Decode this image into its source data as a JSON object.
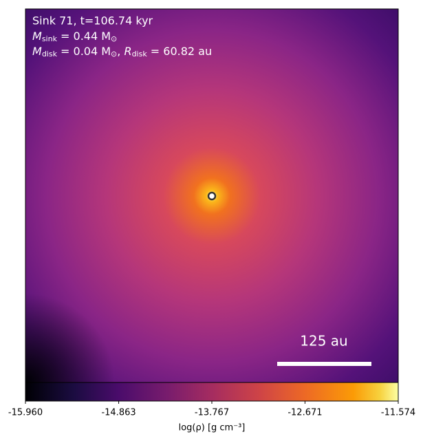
{
  "chart_data": {
    "type": "density-map",
    "annotation_lines": [
      {
        "text": "Sink 71, t=106.74 kyr"
      },
      {
        "symbol": "M",
        "sub": "sink",
        "text": " = 0.44 M",
        "unit_sub": "⊙"
      },
      {
        "symbol": "M",
        "sub": "disk",
        "text": " = 0.04 M",
        "unit_sub": "⊙",
        "text2": ", ",
        "symbol2": "R",
        "sub2": "disk",
        "text3": " = 60.82 au"
      }
    ],
    "scale_bar_label": "125 au",
    "colorbar": {
      "label": "log(ρ) [g cm⁻³]",
      "clim": [
        -15.96,
        -11.574
      ],
      "ticks": [
        {
          "value": -15.96,
          "label": "-15.960"
        },
        {
          "value": -14.863,
          "label": "-14.863"
        },
        {
          "value": -13.767,
          "label": "-13.767"
        },
        {
          "value": -12.671,
          "label": "-12.671"
        },
        {
          "value": -11.574,
          "label": "-11.574"
        }
      ],
      "colormap": "inferno"
    }
  }
}
